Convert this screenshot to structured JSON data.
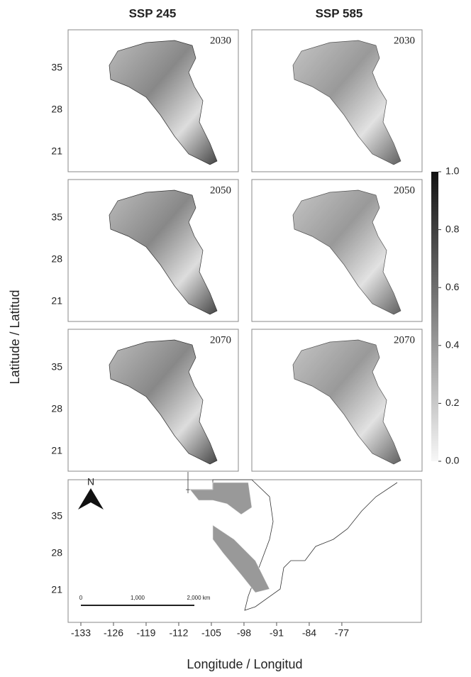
{
  "columns": [
    "SSP 245",
    "SSP 585"
  ],
  "years": [
    "2030",
    "2050",
    "2070"
  ],
  "lat_ticks": [
    35,
    28,
    21
  ],
  "lon_ticks": [
    -133,
    -126,
    -119,
    -112,
    -105,
    -98,
    -91,
    -84,
    -77
  ],
  "colorbar_ticks": [
    "1.0",
    "0.8",
    "0.6",
    "0.4",
    "0.2",
    "0.0"
  ],
  "x_axis_title": "Longitude / Longitud",
  "y_axis_title": "Latitude / Latitud",
  "north_label": "N",
  "scale_bar": [
    "0",
    "1,000",
    "2,000 km"
  ]
}
